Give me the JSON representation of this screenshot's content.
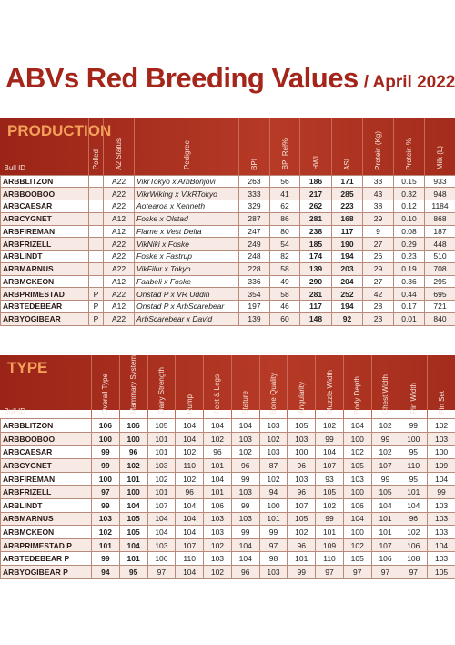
{
  "title": {
    "main": "ABVs Red Breeding Values",
    "sub": "/ April 2022"
  },
  "production": {
    "title": "PRODUCTION",
    "headers": [
      "Bull ID",
      "Polled",
      "A2 Status",
      "Pedigree",
      "BPI",
      "BPI Rel%",
      "HWI",
      "ASI",
      "Protein (Kg)",
      "Protein %",
      "Milk (L)"
    ],
    "rows": [
      [
        "ARBBLITZON",
        "",
        "A22",
        "VikrTokyo x ArbBonjovi",
        "263",
        "56",
        "186",
        "171",
        "33",
        "0.15",
        "933"
      ],
      [
        "ARBBOOBOO",
        "",
        "A22",
        "VikrWiking x VikRTokyo",
        "333",
        "41",
        "217",
        "285",
        "43",
        "0.32",
        "948"
      ],
      [
        "ARBCAESAR",
        "",
        "A22",
        "Aotearoa x Kenneth",
        "329",
        "62",
        "262",
        "223",
        "38",
        "0.12",
        "1184"
      ],
      [
        "ARBCYGNET",
        "",
        "A12",
        "Foske x Olstad",
        "287",
        "86",
        "281",
        "168",
        "29",
        "0.10",
        "868"
      ],
      [
        "ARBFIREMAN",
        "",
        "A12",
        "Flame x Vest Delta",
        "247",
        "80",
        "238",
        "117",
        "9",
        "0.08",
        "187"
      ],
      [
        "ARBFRIZELL",
        "",
        "A22",
        "VikNiki x Foske",
        "249",
        "54",
        "185",
        "190",
        "27",
        "0.29",
        "448"
      ],
      [
        "ARBLINDT",
        "",
        "A22",
        "Foske x Fastrup",
        "248",
        "82",
        "174",
        "194",
        "26",
        "0.23",
        "510"
      ],
      [
        "ARBMARNUS",
        "",
        "A22",
        "VikFilur x Tokyo",
        "228",
        "58",
        "139",
        "203",
        "29",
        "0.19",
        "708"
      ],
      [
        "ARBMCKEON",
        "",
        "A12",
        "Faabeli x Foske",
        "336",
        "49",
        "290",
        "204",
        "27",
        "0.36",
        "295"
      ],
      [
        "ARBPRIMESTAD",
        "P",
        "A22",
        "Onstad P x VR Uddin",
        "354",
        "58",
        "281",
        "252",
        "42",
        "0.44",
        "695"
      ],
      [
        "ARBTEDEBEAR",
        "P",
        "A12",
        "Onstad P x ArbScarebear",
        "197",
        "46",
        "117",
        "194",
        "28",
        "0.17",
        "721"
      ],
      [
        "ARBYOGIBEAR",
        "P",
        "A22",
        "ArbScarebear x David",
        "139",
        "60",
        "148",
        "92",
        "23",
        "0.01",
        "840"
      ]
    ]
  },
  "type": {
    "title": "TYPE",
    "headers": [
      "Bull ID",
      "Overall Type",
      "Mammary System",
      "Dairy Strength",
      "Rump",
      "Feet & Legs",
      "Stature",
      "Bone Quality",
      "Angularity",
      "Muzzle Width",
      "Body Depth",
      "Chest Width",
      "Pin Width",
      "Pin Set"
    ],
    "rows": [
      [
        "ARBBLITZON",
        "106",
        "106",
        "105",
        "104",
        "104",
        "104",
        "103",
        "105",
        "102",
        "104",
        "102",
        "99",
        "102"
      ],
      [
        "ARBBOOBOO",
        "100",
        "100",
        "101",
        "104",
        "102",
        "103",
        "102",
        "103",
        "99",
        "100",
        "99",
        "100",
        "103"
      ],
      [
        "ARBCAESAR",
        "99",
        "96",
        "101",
        "102",
        "96",
        "102",
        "103",
        "100",
        "104",
        "102",
        "102",
        "95",
        "100"
      ],
      [
        "ARBCYGNET",
        "99",
        "102",
        "103",
        "110",
        "101",
        "96",
        "87",
        "96",
        "107",
        "105",
        "107",
        "110",
        "109"
      ],
      [
        "ARBFIREMAN",
        "100",
        "101",
        "102",
        "102",
        "104",
        "99",
        "102",
        "103",
        "93",
        "103",
        "99",
        "95",
        "104"
      ],
      [
        "ARBFRIZELL",
        "97",
        "100",
        "101",
        "96",
        "101",
        "103",
        "94",
        "96",
        "105",
        "100",
        "105",
        "101",
        "99"
      ],
      [
        "ARBLINDT",
        "99",
        "104",
        "107",
        "104",
        "106",
        "99",
        "100",
        "107",
        "102",
        "106",
        "104",
        "104",
        "103"
      ],
      [
        "ARBMARNUS",
        "103",
        "105",
        "104",
        "104",
        "103",
        "103",
        "101",
        "105",
        "99",
        "104",
        "101",
        "96",
        "103"
      ],
      [
        "ARBMCKEON",
        "102",
        "105",
        "104",
        "104",
        "103",
        "99",
        "99",
        "102",
        "101",
        "100",
        "101",
        "102",
        "103"
      ],
      [
        "ARBPRIMESTAD P",
        "101",
        "104",
        "103",
        "107",
        "102",
        "104",
        "97",
        "96",
        "109",
        "102",
        "107",
        "106",
        "104"
      ],
      [
        "ARBTEDEBEAR P",
        "99",
        "101",
        "106",
        "110",
        "103",
        "104",
        "98",
        "101",
        "110",
        "105",
        "106",
        "108",
        "103"
      ],
      [
        "ARBYOGIBEAR P",
        "94",
        "95",
        "97",
        "104",
        "102",
        "96",
        "103",
        "99",
        "97",
        "97",
        "97",
        "97",
        "105"
      ]
    ]
  }
}
